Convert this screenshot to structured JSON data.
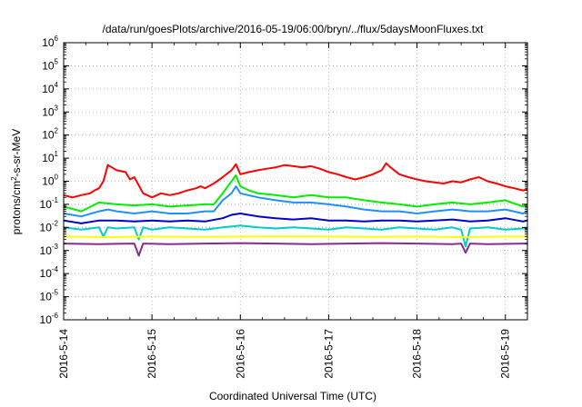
{
  "chart_data": {
    "type": "line",
    "title": "/data/run/goesPlots/archive/2016-05-19/06:00/bryn/../flux/5daysMoonFluxes.txt",
    "xlabel": "Coordinated Universal Time (UTC)",
    "ylabel": {
      "before": "protons/cm",
      "sup": "2",
      "after": "-s-sr-MeV"
    },
    "y_scale": "log",
    "ylim": [
      1e-06,
      1000000.0
    ],
    "y_ticks": [
      {
        "base": "10",
        "exp": "-6",
        "value": 1e-06
      },
      {
        "base": "10",
        "exp": "-5",
        "value": 1e-05
      },
      {
        "base": "10",
        "exp": "-4",
        "value": 0.0001
      },
      {
        "base": "10",
        "exp": "-3",
        "value": 0.001
      },
      {
        "base": "10",
        "exp": "-2",
        "value": 0.01
      },
      {
        "base": "10",
        "exp": "-1",
        "value": 0.1
      },
      {
        "base": "10",
        "exp": "0",
        "value": 1
      },
      {
        "base": "10",
        "exp": "1",
        "value": 10
      },
      {
        "base": "10",
        "exp": "2",
        "value": 100
      },
      {
        "base": "10",
        "exp": "3",
        "value": 1000
      },
      {
        "base": "10",
        "exp": "4",
        "value": 10000
      },
      {
        "base": "10",
        "exp": "5",
        "value": 100000
      },
      {
        "base": "10",
        "exp": "6",
        "value": 1000000
      }
    ],
    "x_ticks": [
      {
        "label": "2016-5-14",
        "day": 0
      },
      {
        "label": "2016-5-15",
        "day": 1
      },
      {
        "label": "2016-5-16",
        "day": 2
      },
      {
        "label": "2016-5-17",
        "day": 3
      },
      {
        "label": "2016-5-18",
        "day": 4
      },
      {
        "label": "2016-5-19",
        "day": 5
      }
    ],
    "xlim_days": [
      0,
      5.25
    ],
    "grid": true,
    "series": [
      {
        "color": "#ff0000",
        "x": [
          0,
          0.1,
          0.2,
          0.3,
          0.35,
          0.4,
          0.45,
          0.5,
          0.6,
          0.7,
          0.75,
          0.8,
          0.9,
          1.0,
          1.1,
          1.2,
          1.3,
          1.4,
          1.5,
          1.55,
          1.6,
          1.7,
          1.8,
          1.9,
          1.95,
          2.0,
          2.1,
          2.2,
          2.3,
          2.4,
          2.5,
          2.6,
          2.7,
          2.8,
          2.9,
          3.0,
          3.1,
          3.2,
          3.3,
          3.4,
          3.5,
          3.6,
          3.65,
          3.7,
          3.8,
          3.9,
          4.0,
          4.1,
          4.2,
          4.3,
          4.4,
          4.5,
          4.6,
          4.7,
          4.8,
          4.9,
          5.0,
          5.1,
          5.2,
          5.25
        ],
        "y": [
          0.25,
          0.2,
          0.25,
          0.3,
          0.4,
          0.5,
          1.0,
          5.0,
          3.0,
          2.5,
          1.2,
          1.5,
          0.3,
          0.2,
          0.3,
          0.25,
          0.3,
          0.4,
          0.5,
          0.6,
          0.5,
          0.8,
          1.5,
          3.0,
          5.5,
          2.0,
          2.5,
          3.0,
          3.5,
          4.0,
          5.0,
          4.5,
          4.0,
          4.5,
          3.5,
          2.5,
          2.0,
          1.5,
          1.2,
          1.5,
          2.0,
          3.0,
          6.0,
          4.0,
          2.0,
          1.5,
          1.2,
          1.0,
          0.9,
          0.8,
          1.0,
          0.9,
          1.2,
          1.5,
          1.0,
          0.8,
          0.6,
          0.5,
          0.4,
          0.45
        ]
      },
      {
        "color": "#00ee00",
        "x": [
          0,
          0.2,
          0.4,
          0.6,
          0.8,
          1.0,
          1.2,
          1.4,
          1.6,
          1.7,
          1.8,
          1.9,
          1.95,
          2.0,
          2.1,
          2.2,
          2.4,
          2.6,
          2.8,
          3.0,
          3.2,
          3.4,
          3.6,
          3.8,
          4.0,
          4.2,
          4.4,
          4.6,
          4.8,
          5.0,
          5.2,
          5.25
        ],
        "y": [
          0.08,
          0.05,
          0.12,
          0.1,
          0.09,
          0.1,
          0.08,
          0.09,
          0.1,
          0.1,
          0.3,
          1.0,
          1.8,
          0.6,
          0.4,
          0.3,
          0.25,
          0.2,
          0.25,
          0.2,
          0.2,
          0.15,
          0.12,
          0.1,
          0.08,
          0.1,
          0.12,
          0.1,
          0.12,
          0.15,
          0.08,
          0.1
        ]
      },
      {
        "color": "#1e90ff",
        "x": [
          0,
          0.2,
          0.4,
          0.5,
          0.6,
          0.8,
          1.0,
          1.2,
          1.4,
          1.6,
          1.7,
          1.8,
          1.9,
          1.95,
          2.0,
          2.2,
          2.4,
          2.6,
          2.8,
          3.0,
          3.2,
          3.4,
          3.6,
          3.8,
          4.0,
          4.2,
          4.4,
          4.6,
          4.8,
          5.0,
          5.2,
          5.25
        ],
        "y": [
          0.04,
          0.03,
          0.05,
          0.06,
          0.05,
          0.04,
          0.05,
          0.04,
          0.04,
          0.05,
          0.05,
          0.15,
          0.3,
          0.6,
          0.3,
          0.2,
          0.15,
          0.12,
          0.12,
          0.1,
          0.08,
          0.06,
          0.05,
          0.05,
          0.04,
          0.05,
          0.06,
          0.05,
          0.05,
          0.06,
          0.04,
          0.05
        ]
      },
      {
        "color": "#0000cd",
        "x": [
          0,
          0.2,
          0.4,
          0.6,
          0.8,
          1.0,
          1.2,
          1.4,
          1.6,
          1.8,
          1.9,
          2.0,
          2.2,
          2.4,
          2.6,
          2.8,
          3.0,
          3.2,
          3.4,
          3.6,
          3.8,
          4.0,
          4.2,
          4.4,
          4.6,
          4.8,
          5.0,
          5.2,
          5.25
        ],
        "y": [
          0.02,
          0.015,
          0.02,
          0.02,
          0.018,
          0.02,
          0.018,
          0.02,
          0.018,
          0.025,
          0.035,
          0.04,
          0.03,
          0.025,
          0.022,
          0.025,
          0.02,
          0.02,
          0.018,
          0.02,
          0.02,
          0.018,
          0.02,
          0.022,
          0.018,
          0.02,
          0.025,
          0.018,
          0.02
        ]
      },
      {
        "color": "#00cccc",
        "x": [
          0,
          0.2,
          0.4,
          0.45,
          0.5,
          0.6,
          0.8,
          0.85,
          0.9,
          1.0,
          1.2,
          1.4,
          1.6,
          1.8,
          2.0,
          2.2,
          2.4,
          2.6,
          2.8,
          3.0,
          3.2,
          3.4,
          3.6,
          3.8,
          4.0,
          4.2,
          4.4,
          4.5,
          4.55,
          4.6,
          4.8,
          5.0,
          5.2,
          5.25
        ],
        "y": [
          0.01,
          0.008,
          0.01,
          0.004,
          0.01,
          0.009,
          0.01,
          0.003,
          0.01,
          0.008,
          0.01,
          0.009,
          0.008,
          0.01,
          0.012,
          0.01,
          0.009,
          0.01,
          0.009,
          0.008,
          0.01,
          0.009,
          0.008,
          0.01,
          0.009,
          0.008,
          0.01,
          0.008,
          0.0015,
          0.009,
          0.01,
          0.008,
          0.009,
          0.009
        ]
      },
      {
        "color": "#ffff00",
        "x": [
          0,
          0.5,
          1.0,
          1.5,
          2.0,
          2.5,
          3.0,
          3.5,
          4.0,
          4.5,
          5.0,
          5.25
        ],
        "y": [
          0.004,
          0.0038,
          0.004,
          0.0039,
          0.004,
          0.0041,
          0.004,
          0.0039,
          0.004,
          0.0038,
          0.004,
          0.004
        ]
      },
      {
        "color": "#8b2c8b",
        "x": [
          0,
          0.4,
          0.8,
          0.85,
          0.9,
          1.2,
          1.6,
          2.0,
          2.4,
          2.8,
          3.2,
          3.6,
          4.0,
          4.4,
          4.5,
          4.55,
          4.6,
          4.8,
          5.2,
          5.25
        ],
        "y": [
          0.002,
          0.0019,
          0.002,
          0.0006,
          0.002,
          0.0019,
          0.002,
          0.0021,
          0.002,
          0.0019,
          0.002,
          0.0021,
          0.002,
          0.0019,
          0.002,
          0.0008,
          0.002,
          0.0019,
          0.002,
          0.002
        ]
      }
    ]
  }
}
